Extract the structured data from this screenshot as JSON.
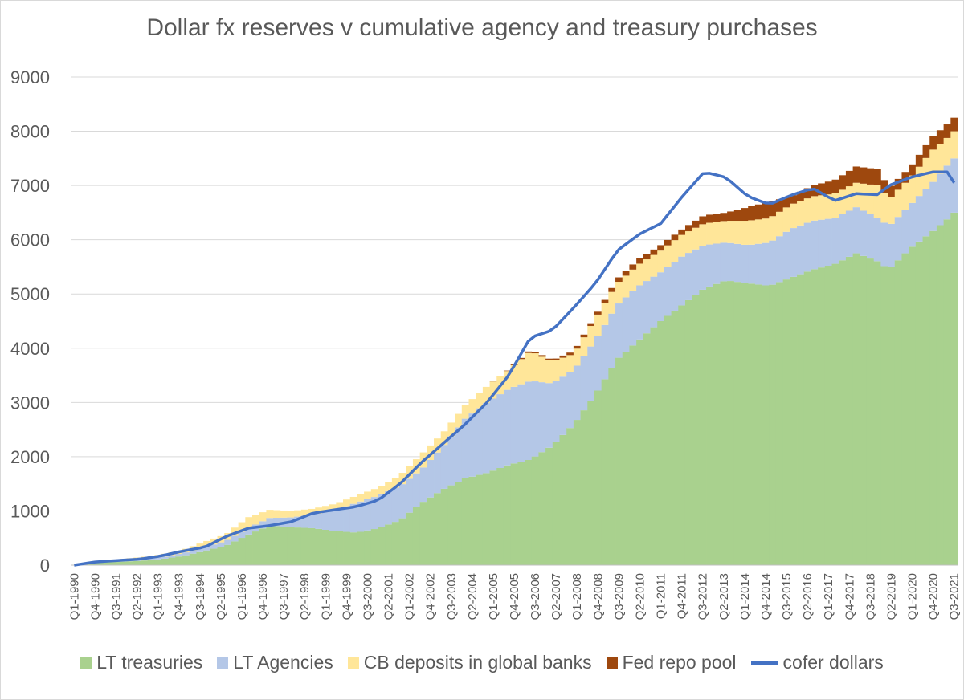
{
  "chart_data": {
    "type": "bar",
    "stacked": true,
    "title": "Dollar fx reserves v cumulative agency and treasury purchases",
    "xlabel": "",
    "ylabel": "",
    "ylim": [
      0,
      9000
    ],
    "y_ticks": [
      0,
      1000,
      2000,
      3000,
      4000,
      5000,
      6000,
      7000,
      8000,
      9000
    ],
    "grid": true,
    "legend_position": "bottom",
    "categories": [],
    "x_tick_labels": [
      "Q1-1990",
      "Q4-1990",
      "Q3-1991",
      "Q2-1992",
      "Q1-1993",
      "Q4-1993",
      "Q3-1994",
      "Q2-1995",
      "Q1-1996",
      "Q4-1996",
      "Q3-1997",
      "Q2-1998",
      "Q1-1999",
      "Q4-1999",
      "Q3-2000",
      "Q2-2001",
      "Q1-2002",
      "Q4-2002",
      "Q3-2003",
      "Q2-2004",
      "Q1-2005",
      "Q4-2005",
      "Q3-2006",
      "Q2-2007",
      "Q1-2008",
      "Q4-2008",
      "Q3-2009",
      "Q2-2010",
      "Q1-2011",
      "Q4-2011",
      "Q3-2012",
      "Q2-2013",
      "Q1-2014",
      "Q4-2014",
      "Q3-2015",
      "Q2-2016",
      "Q1-2017",
      "Q4-2017",
      "Q3-2018",
      "Q2-2019",
      "Q1-2020",
      "Q4-2020",
      "Q3-2021"
    ],
    "anchor_quarters": [
      {
        "q": 0,
        "lt_treasuries": 0,
        "lt_agencies": 0,
        "cb_deposits": 0,
        "fed_repo": 0,
        "cofer": 0
      },
      {
        "q": 4,
        "lt_treasuries": 40,
        "lt_agencies": 10,
        "cb_deposits": 15,
        "fed_repo": 0,
        "cofer": 60
      },
      {
        "q": 12,
        "lt_treasuries": 80,
        "lt_agencies": 25,
        "cb_deposits": 40,
        "fed_repo": 0,
        "cofer": 110
      },
      {
        "q": 16,
        "lt_treasuries": 110,
        "lt_agencies": 35,
        "cb_deposits": 50,
        "fed_repo": 0,
        "cofer": 170
      },
      {
        "q": 20,
        "lt_treasuries": 170,
        "lt_agencies": 50,
        "cb_deposits": 60,
        "fed_repo": 0,
        "cofer": 260
      },
      {
        "q": 24,
        "lt_treasuries": 260,
        "lt_agencies": 70,
        "cb_deposits": 100,
        "fed_repo": 0,
        "cofer": 330
      },
      {
        "q": 28,
        "lt_treasuries": 360,
        "lt_agencies": 90,
        "cb_deposits": 120,
        "fed_repo": 0,
        "cofer": 530
      },
      {
        "q": 32,
        "lt_treasuries": 560,
        "lt_agencies": 120,
        "cb_deposits": 200,
        "fed_repo": 0,
        "cofer": 680
      },
      {
        "q": 36,
        "lt_treasuries": 730,
        "lt_agencies": 140,
        "cb_deposits": 150,
        "fed_repo": 0,
        "cofer": 730
      },
      {
        "q": 40,
        "lt_treasuries": 700,
        "lt_agencies": 180,
        "cb_deposits": 120,
        "fed_repo": 0,
        "cofer": 800
      },
      {
        "q": 44,
        "lt_treasuries": 680,
        "lt_agencies": 250,
        "cb_deposits": 110,
        "fed_repo": 0,
        "cofer": 960
      },
      {
        "q": 48,
        "lt_treasuries": 630,
        "lt_agencies": 380,
        "cb_deposits": 120,
        "fed_repo": 0,
        "cofer": 1020
      },
      {
        "q": 52,
        "lt_treasuries": 600,
        "lt_agencies": 550,
        "cb_deposits": 130,
        "fed_repo": 0,
        "cofer": 1080
      },
      {
        "q": 56,
        "lt_treasuries": 680,
        "lt_agencies": 600,
        "cb_deposits": 150,
        "fed_repo": 0,
        "cofer": 1200
      },
      {
        "q": 60,
        "lt_treasuries": 830,
        "lt_agencies": 630,
        "cb_deposits": 200,
        "fed_repo": 0,
        "cofer": 1500
      },
      {
        "q": 64,
        "lt_treasuries": 1150,
        "lt_agencies": 620,
        "cb_deposits": 280,
        "fed_repo": 0,
        "cofer": 1900
      },
      {
        "q": 68,
        "lt_treasuries": 1400,
        "lt_agencies": 800,
        "cb_deposits": 250,
        "fed_repo": 0,
        "cofer": 2250
      },
      {
        "q": 72,
        "lt_treasuries": 1600,
        "lt_agencies": 1100,
        "cb_deposits": 250,
        "fed_repo": 0,
        "cofer": 2600
      },
      {
        "q": 76,
        "lt_treasuries": 1700,
        "lt_agencies": 1300,
        "cb_deposits": 300,
        "fed_repo": 0,
        "cofer": 3000
      },
      {
        "q": 80,
        "lt_treasuries": 1850,
        "lt_agencies": 1400,
        "cb_deposits": 350,
        "fed_repo": 10,
        "cofer": 3500
      },
      {
        "q": 84,
        "lt_treasuries": 1950,
        "lt_agencies": 1450,
        "cb_deposits": 550,
        "fed_repo": 30,
        "cofer": 4200
      },
      {
        "q": 88,
        "lt_treasuries": 2200,
        "lt_agencies": 1150,
        "cb_deposits": 400,
        "fed_repo": 30,
        "cofer": 4330
      },
      {
        "q": 92,
        "lt_treasuries": 2600,
        "lt_agencies": 1000,
        "cb_deposits": 300,
        "fed_repo": 50,
        "cofer": 4750
      },
      {
        "q": 96,
        "lt_treasuries": 3150,
        "lt_agencies": 1000,
        "cb_deposits": 400,
        "fed_repo": 50,
        "cofer": 5200
      },
      {
        "q": 100,
        "lt_treasuries": 3800,
        "lt_agencies": 1000,
        "cb_deposits": 400,
        "fed_repo": 80,
        "cofer": 5800
      },
      {
        "q": 104,
        "lt_treasuries": 4150,
        "lt_agencies": 1000,
        "cb_deposits": 400,
        "fed_repo": 100,
        "cofer": 6100
      },
      {
        "q": 108,
        "lt_treasuries": 4500,
        "lt_agencies": 900,
        "cb_deposits": 400,
        "fed_repo": 100,
        "cofer": 6300
      },
      {
        "q": 112,
        "lt_treasuries": 4800,
        "lt_agencies": 900,
        "cb_deposits": 400,
        "fed_repo": 100,
        "cofer": 6800
      },
      {
        "q": 116,
        "lt_treasuries": 5100,
        "lt_agencies": 800,
        "cb_deposits": 400,
        "fed_repo": 150,
        "cofer": 7250
      },
      {
        "q": 120,
        "lt_treasuries": 5250,
        "lt_agencies": 700,
        "cb_deposits": 400,
        "fed_repo": 150,
        "cofer": 7150
      },
      {
        "q": 124,
        "lt_treasuries": 5200,
        "lt_agencies": 700,
        "cb_deposits": 450,
        "fed_repo": 250,
        "cofer": 6800
      },
      {
        "q": 128,
        "lt_treasuries": 5150,
        "lt_agencies": 800,
        "cb_deposits": 450,
        "fed_repo": 300,
        "cofer": 6650
      },
      {
        "q": 132,
        "lt_treasuries": 5300,
        "lt_agencies": 900,
        "cb_deposits": 450,
        "fed_repo": 150,
        "cofer": 6820
      },
      {
        "q": 136,
        "lt_treasuries": 5450,
        "lt_agencies": 900,
        "cb_deposits": 450,
        "fed_repo": 200,
        "cofer": 6950
      },
      {
        "q": 140,
        "lt_treasuries": 5550,
        "lt_agencies": 850,
        "cb_deposits": 450,
        "fed_repo": 250,
        "cofer": 6720
      },
      {
        "q": 144,
        "lt_treasuries": 5750,
        "lt_agencies": 850,
        "cb_deposits": 450,
        "fed_repo": 300,
        "cofer": 6850
      },
      {
        "q": 148,
        "lt_treasuries": 5600,
        "lt_agencies": 800,
        "cb_deposits": 600,
        "fed_repo": 300,
        "cofer": 6830
      },
      {
        "q": 150,
        "lt_treasuries": 5450,
        "lt_agencies": 800,
        "cb_deposits": 500,
        "fed_repo": 200,
        "cofer": 7000
      },
      {
        "q": 154,
        "lt_treasuries": 5850,
        "lt_agencies": 800,
        "cb_deposits": 500,
        "fed_repo": 200,
        "cofer": 7150
      },
      {
        "q": 158,
        "lt_treasuries": 6150,
        "lt_agencies": 900,
        "cb_deposits": 600,
        "fed_repo": 250,
        "cofer": 7250
      },
      {
        "q": 161,
        "lt_treasuries": 6400,
        "lt_agencies": 1000,
        "cb_deposits": 500,
        "fed_repo": 250,
        "cofer": 7250
      },
      {
        "q": 162,
        "lt_treasuries": 6500,
        "lt_agencies": 1000,
        "cb_deposits": 500,
        "fed_repo": 250,
        "cofer": 7050
      }
    ],
    "series": [
      {
        "name": "LT treasuries",
        "key": "lt_treasuries",
        "color": "#a9d18e",
        "kind": "bar"
      },
      {
        "name": "LT Agencies",
        "key": "lt_agencies",
        "color": "#b4c7e7",
        "kind": "bar"
      },
      {
        "name": "CB deposits in global banks",
        "key": "cb_deposits",
        "color": "#ffe699",
        "kind": "bar"
      },
      {
        "name": "Fed repo pool",
        "key": "fed_repo",
        "color": "#9e480e",
        "kind": "bar"
      },
      {
        "name": "cofer dollars",
        "key": "cofer",
        "color": "#4472c4",
        "kind": "line"
      }
    ]
  },
  "legend": {
    "items": [
      {
        "label": "LT treasuries",
        "color": "#a9d18e",
        "kind": "swatch"
      },
      {
        "label": "LT Agencies",
        "color": "#b4c7e7",
        "kind": "swatch"
      },
      {
        "label": "CB deposits in global banks",
        "color": "#ffe699",
        "kind": "swatch"
      },
      {
        "label": "Fed repo pool",
        "color": "#9e480e",
        "kind": "swatch"
      },
      {
        "label": "cofer dollars",
        "color": "#4472c4",
        "kind": "line"
      }
    ]
  }
}
